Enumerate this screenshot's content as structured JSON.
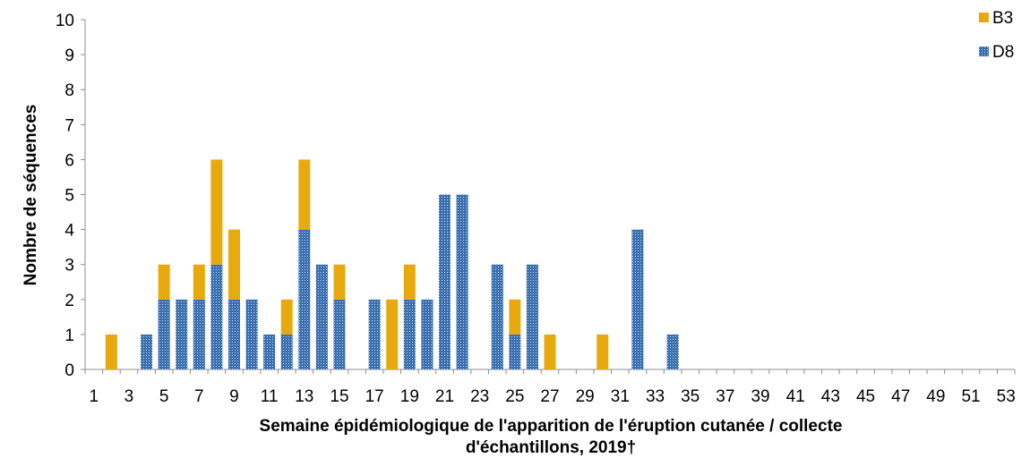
{
  "chart_data": {
    "type": "bar",
    "stacked": true,
    "title": "",
    "xlabel_lines": [
      "Semaine épidémiologique de l'apparition de l'éruption cutanée / collecte",
      "d'échantillons, 2019†"
    ],
    "ylabel": "Nombre de séquences",
    "ylim": [
      0,
      10
    ],
    "yticks": [
      "0",
      "1",
      "2",
      "3",
      "4",
      "5",
      "6",
      "7",
      "8",
      "9",
      "10"
    ],
    "categories": [
      "1",
      "2",
      "3",
      "4",
      "5",
      "6",
      "7",
      "8",
      "9",
      "10",
      "11",
      "12",
      "13",
      "14",
      "15",
      "16",
      "17",
      "18",
      "19",
      "20",
      "21",
      "22",
      "23",
      "24",
      "25",
      "26",
      "27",
      "28",
      "29",
      "30",
      "31",
      "32",
      "33",
      "34",
      "35",
      "36",
      "37",
      "38",
      "39",
      "40",
      "41",
      "42",
      "43",
      "44",
      "45",
      "46",
      "47",
      "48",
      "49",
      "50",
      "51",
      "52",
      "53"
    ],
    "xtick_labels": [
      "1",
      "3",
      "5",
      "7",
      "9",
      "11",
      "13",
      "15",
      "17",
      "19",
      "21",
      "23",
      "25",
      "27",
      "29",
      "31",
      "33",
      "35",
      "37",
      "39",
      "41",
      "43",
      "45",
      "47",
      "49",
      "51",
      "53"
    ],
    "series": [
      {
        "name": "D8",
        "color": "#3a6fb0",
        "pattern": "dotted",
        "values": [
          0,
          0,
          0,
          1,
          2,
          2,
          2,
          3,
          2,
          2,
          1,
          1,
          4,
          3,
          2,
          0,
          2,
          0,
          2,
          2,
          5,
          5,
          0,
          3,
          1,
          3,
          0,
          0,
          0,
          0,
          0,
          4,
          0,
          1,
          0,
          0,
          0,
          0,
          0,
          0,
          0,
          0,
          0,
          0,
          0,
          0,
          0,
          0,
          0,
          0,
          0,
          0,
          0
        ]
      },
      {
        "name": "B3",
        "color": "#e8a90e",
        "pattern": "solid",
        "values": [
          0,
          1,
          0,
          0,
          1,
          0,
          1,
          3,
          2,
          0,
          0,
          1,
          2,
          0,
          1,
          0,
          0,
          2,
          1,
          0,
          0,
          0,
          0,
          0,
          1,
          0,
          1,
          0,
          0,
          1,
          0,
          0,
          0,
          0,
          0,
          0,
          0,
          0,
          0,
          0,
          0,
          0,
          0,
          0,
          0,
          0,
          0,
          0,
          0,
          0,
          0,
          0,
          0
        ]
      }
    ],
    "legend": {
      "placement": "top-right",
      "entries": [
        {
          "name": "B3",
          "color": "#e8a90e"
        },
        {
          "name": "D8",
          "color": "#3a6fb0"
        }
      ]
    },
    "grid": false
  }
}
